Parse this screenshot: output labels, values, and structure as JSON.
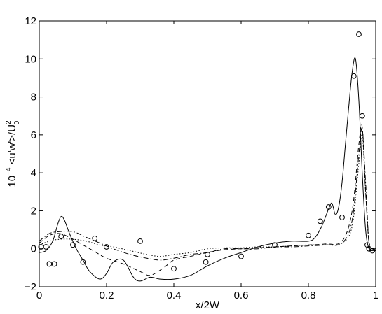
{
  "chart_data": {
    "type": "line",
    "title": "",
    "xlabel": "x/2W",
    "ylabel": {
      "prefix": "10",
      "prefix_exponent": "−4",
      "body": " <u'w'>/U",
      "suffix_exponent": "2",
      "suffix_subscript": "0"
    },
    "xlim": [
      0,
      1
    ],
    "ylim": [
      -2,
      12
    ],
    "grid": false,
    "x_ticks": [
      0,
      0.2,
      0.4,
      0.6,
      0.8,
      1
    ],
    "x_tick_labels": [
      "0",
      "0.2",
      "0.4",
      "0.6",
      "0.8",
      "1"
    ],
    "y_ticks": [
      -2,
      0,
      2,
      4,
      6,
      8,
      10,
      12
    ],
    "y_tick_labels": [
      "−2",
      "0",
      "2",
      "4",
      "6",
      "8",
      "10",
      "12"
    ],
    "series": [
      {
        "style": "solid",
        "color": "#000000",
        "x": [
          0,
          0.02,
          0.04,
          0.055,
          0.065,
          0.075,
          0.09,
          0.11,
          0.13,
          0.15,
          0.18,
          0.2,
          0.22,
          0.25,
          0.28,
          0.3,
          0.33,
          0.36,
          0.4,
          0.45,
          0.5,
          0.55,
          0.6,
          0.65,
          0.7,
          0.75,
          0.8,
          0.82,
          0.84,
          0.86,
          0.87,
          0.88,
          0.89,
          0.9,
          0.91,
          0.92,
          0.93,
          0.94,
          0.95,
          0.96,
          0.97,
          0.98,
          0.99,
          1.0
        ],
        "y": [
          -0.2,
          -0.1,
          0.4,
          1.3,
          1.7,
          1.5,
          0.8,
          0.0,
          -0.6,
          -1.2,
          -1.6,
          -1.3,
          -0.7,
          -0.6,
          -1.5,
          -1.7,
          -1.5,
          -1.6,
          -1.6,
          -1.4,
          -0.9,
          -0.5,
          -0.2,
          0.1,
          0.3,
          0.4,
          0.4,
          0.6,
          1.2,
          2.1,
          2.4,
          1.8,
          2.2,
          3.5,
          5.5,
          7.5,
          9.3,
          10.0,
          7.8,
          4.0,
          1.0,
          0.0,
          -0.1,
          -0.1
        ]
      },
      {
        "style": "dashed",
        "color": "#000000",
        "x": [
          0,
          0.03,
          0.06,
          0.09,
          0.12,
          0.16,
          0.2,
          0.25,
          0.3,
          0.33,
          0.37,
          0.4,
          0.45,
          0.5,
          0.55,
          0.6,
          0.65,
          0.7,
          0.75,
          0.8,
          0.85,
          0.9,
          0.93,
          0.95,
          0.96,
          0.97,
          0.98,
          0.99,
          1.0
        ],
        "y": [
          0.3,
          0.7,
          0.8,
          0.6,
          0.3,
          -0.1,
          -0.5,
          -0.8,
          -1.2,
          -1.4,
          -1.0,
          -0.6,
          -0.4,
          -0.2,
          -0.05,
          0.0,
          0.05,
          0.1,
          0.15,
          0.2,
          0.25,
          0.4,
          2.0,
          5.5,
          6.4,
          3.0,
          0.3,
          0.0,
          0.0
        ]
      },
      {
        "style": "dashdot",
        "color": "#000000",
        "x": [
          0,
          0.03,
          0.06,
          0.1,
          0.14,
          0.18,
          0.22,
          0.27,
          0.32,
          0.36,
          0.4,
          0.45,
          0.5,
          0.55,
          0.6,
          0.65,
          0.7,
          0.75,
          0.8,
          0.85,
          0.9,
          0.93,
          0.95,
          0.96,
          0.97,
          0.98,
          0.99,
          1.0
        ],
        "y": [
          0.4,
          0.8,
          0.9,
          0.9,
          0.6,
          0.3,
          0.0,
          -0.3,
          -0.5,
          -0.6,
          -0.5,
          -0.3,
          -0.2,
          0.0,
          0.0,
          0.0,
          0.1,
          0.1,
          0.15,
          0.2,
          0.3,
          1.5,
          5.0,
          6.3,
          3.5,
          0.3,
          0.0,
          0.0
        ]
      },
      {
        "style": "dotted",
        "color": "#000000",
        "x": [
          0,
          0.03,
          0.06,
          0.1,
          0.14,
          0.18,
          0.22,
          0.27,
          0.32,
          0.36,
          0.4,
          0.45,
          0.5,
          0.55,
          0.6,
          0.65,
          0.7,
          0.75,
          0.8,
          0.85,
          0.9,
          0.93,
          0.95,
          0.96,
          0.97,
          0.98,
          0.99,
          1.0
        ],
        "y": [
          0.2,
          0.4,
          0.5,
          0.5,
          0.4,
          0.2,
          0.1,
          -0.1,
          -0.3,
          -0.4,
          -0.3,
          -0.2,
          0.0,
          0.05,
          0.05,
          0.1,
          0.1,
          0.15,
          0.2,
          0.2,
          0.3,
          1.2,
          4.5,
          6.0,
          3.0,
          0.3,
          0.0,
          0.0
        ]
      }
    ],
    "markers": {
      "style": "open-circle",
      "x": [
        0.005,
        0.02,
        0.03,
        0.045,
        0.065,
        0.1,
        0.13,
        0.165,
        0.2,
        0.3,
        0.4,
        0.495,
        0.5,
        0.6,
        0.7,
        0.8,
        0.835,
        0.86,
        0.9,
        0.935,
        0.95,
        0.96,
        0.975,
        0.98,
        0.99
      ],
      "y": [
        0.1,
        0.1,
        -0.8,
        -0.8,
        0.65,
        0.2,
        -0.7,
        0.55,
        0.1,
        0.4,
        -1.05,
        -0.7,
        -0.3,
        -0.4,
        0.2,
        0.7,
        1.45,
        2.2,
        1.65,
        9.1,
        11.3,
        7.0,
        0.2,
        0.0,
        -0.1
      ]
    }
  }
}
